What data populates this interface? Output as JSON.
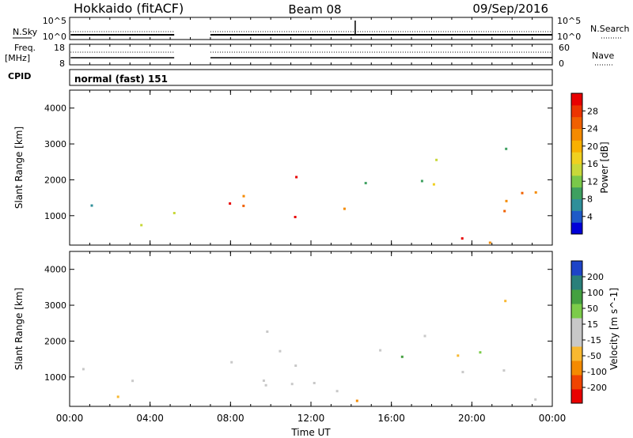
{
  "header": {
    "station": "Hokkaido (fitACF)",
    "beam": "Beam 08",
    "date": "09/Sep/2016"
  },
  "nsky_panel": {
    "left_label": "N.Sky",
    "left_ticks": [
      "10^5",
      "10^0"
    ],
    "right_ticks": [
      "10^5",
      "10^0"
    ],
    "right_label": "N.Search"
  },
  "freq_panel": {
    "left_label_1": "Freq.",
    "left_label_2": "[MHz]",
    "left_ticks": [
      "18",
      "8"
    ],
    "right_ticks": [
      "60",
      "0"
    ],
    "right_label": "Nave"
  },
  "cpid_panel": {
    "left_label": "CPID",
    "mode": "normal (fast) 151"
  },
  "chart_data": [
    {
      "type": "heatmap",
      "title": "",
      "xlabel": "",
      "ylabel": "Slant Range [km]",
      "xlim_hours": [
        0,
        24
      ],
      "ylim_km": [
        180,
        4500
      ],
      "y_ticks": [
        "1000",
        "2000",
        "3000",
        "4000"
      ],
      "colorbar": {
        "label": "Power [dB]",
        "ticks": [
          "4",
          "8",
          "12",
          "16",
          "20",
          "24",
          "28"
        ],
        "range": [
          0,
          30
        ],
        "colors": [
          "#0000d8",
          "#1e5ac8",
          "#2f8f9a",
          "#3ea060",
          "#7ac84a",
          "#c8d83a",
          "#f0d020",
          "#f8b000",
          "#f48a00",
          "#f06000",
          "#ec3400",
          "#e80000"
        ]
      },
      "echo_regions": [
        {
          "t": [
            1.0,
            5.2
          ],
          "r": [
            500,
            1400
          ],
          "level": 0.45
        },
        {
          "t": [
            0.0,
            1.2
          ],
          "r": [
            400,
            1400
          ],
          "level": 0.35
        },
        {
          "t": [
            6.8,
            8.6
          ],
          "r": [
            1200,
            3000
          ],
          "level": 0.8
        },
        {
          "t": [
            7.8,
            11.5
          ],
          "r": [
            1300,
            2300
          ],
          "level": 0.9
        },
        {
          "t": [
            11.0,
            13.5
          ],
          "r": [
            500,
            1300
          ],
          "level": 0.95
        },
        {
          "t": [
            13.2,
            15.2
          ],
          "r": [
            600,
            1300
          ],
          "level": 0.85
        },
        {
          "t": [
            8.0,
            24.0
          ],
          "r": [
            250,
            450
          ],
          "level": 0.9
        },
        {
          "t": [
            14.5,
            19.0
          ],
          "r": [
            1500,
            2800
          ],
          "level": 0.4
        },
        {
          "t": [
            18.5,
            24.0
          ],
          "r": [
            900,
            2200
          ],
          "level": 0.8
        },
        {
          "t": [
            20.5,
            22.5
          ],
          "r": [
            2800,
            3200
          ],
          "level": 0.45
        }
      ]
    },
    {
      "type": "heatmap",
      "title": "",
      "xlabel": "Time UT",
      "ylabel": "Slant Range [km]",
      "xlim_hours": [
        0,
        24
      ],
      "ylim_km": [
        180,
        4500
      ],
      "x_ticks": [
        "00:00",
        "04:00",
        "08:00",
        "12:00",
        "16:00",
        "20:00",
        "00:00"
      ],
      "y_ticks": [
        "1000",
        "2000",
        "3000",
        "4000"
      ],
      "colorbar": {
        "label": "Velocity [m s^-1]",
        "ticks": [
          "200",
          "100",
          "50",
          "15",
          "-15",
          "-50",
          "-100",
          "-200"
        ],
        "range": [
          -250,
          250
        ],
        "colors": [
          "#e80000",
          "#f04400",
          "#f48a00",
          "#f8b830",
          "#c8c8c8",
          "#c8c8c8",
          "#7ccc4a",
          "#44a040",
          "#2a7f7a",
          "#1e44c8"
        ]
      },
      "echo_regions": [
        {
          "t": [
            0.0,
            5.2
          ],
          "r": [
            400,
            1400
          ],
          "level": 0.5
        },
        {
          "t": [
            6.8,
            11.5
          ],
          "r": [
            800,
            3000
          ],
          "level": 0.5
        },
        {
          "t": [
            11.0,
            16.0
          ],
          "r": [
            500,
            1300
          ],
          "level": 0.5
        },
        {
          "t": [
            14.0,
            19.0
          ],
          "r": [
            1200,
            2200
          ],
          "level": 0.7
        },
        {
          "t": [
            8.0,
            24.0
          ],
          "r": [
            250,
            450
          ],
          "level": 0.25
        },
        {
          "t": [
            18.5,
            24.0
          ],
          "r": [
            900,
            2000
          ],
          "level": 0.5
        },
        {
          "t": [
            20.0,
            22.5
          ],
          "r": [
            2600,
            3200
          ],
          "level": 0.5
        }
      ]
    }
  ],
  "colors": {
    "axis": "#000000",
    "bg": "#ffffff",
    "grey_velocity": "#c8c8c8"
  }
}
